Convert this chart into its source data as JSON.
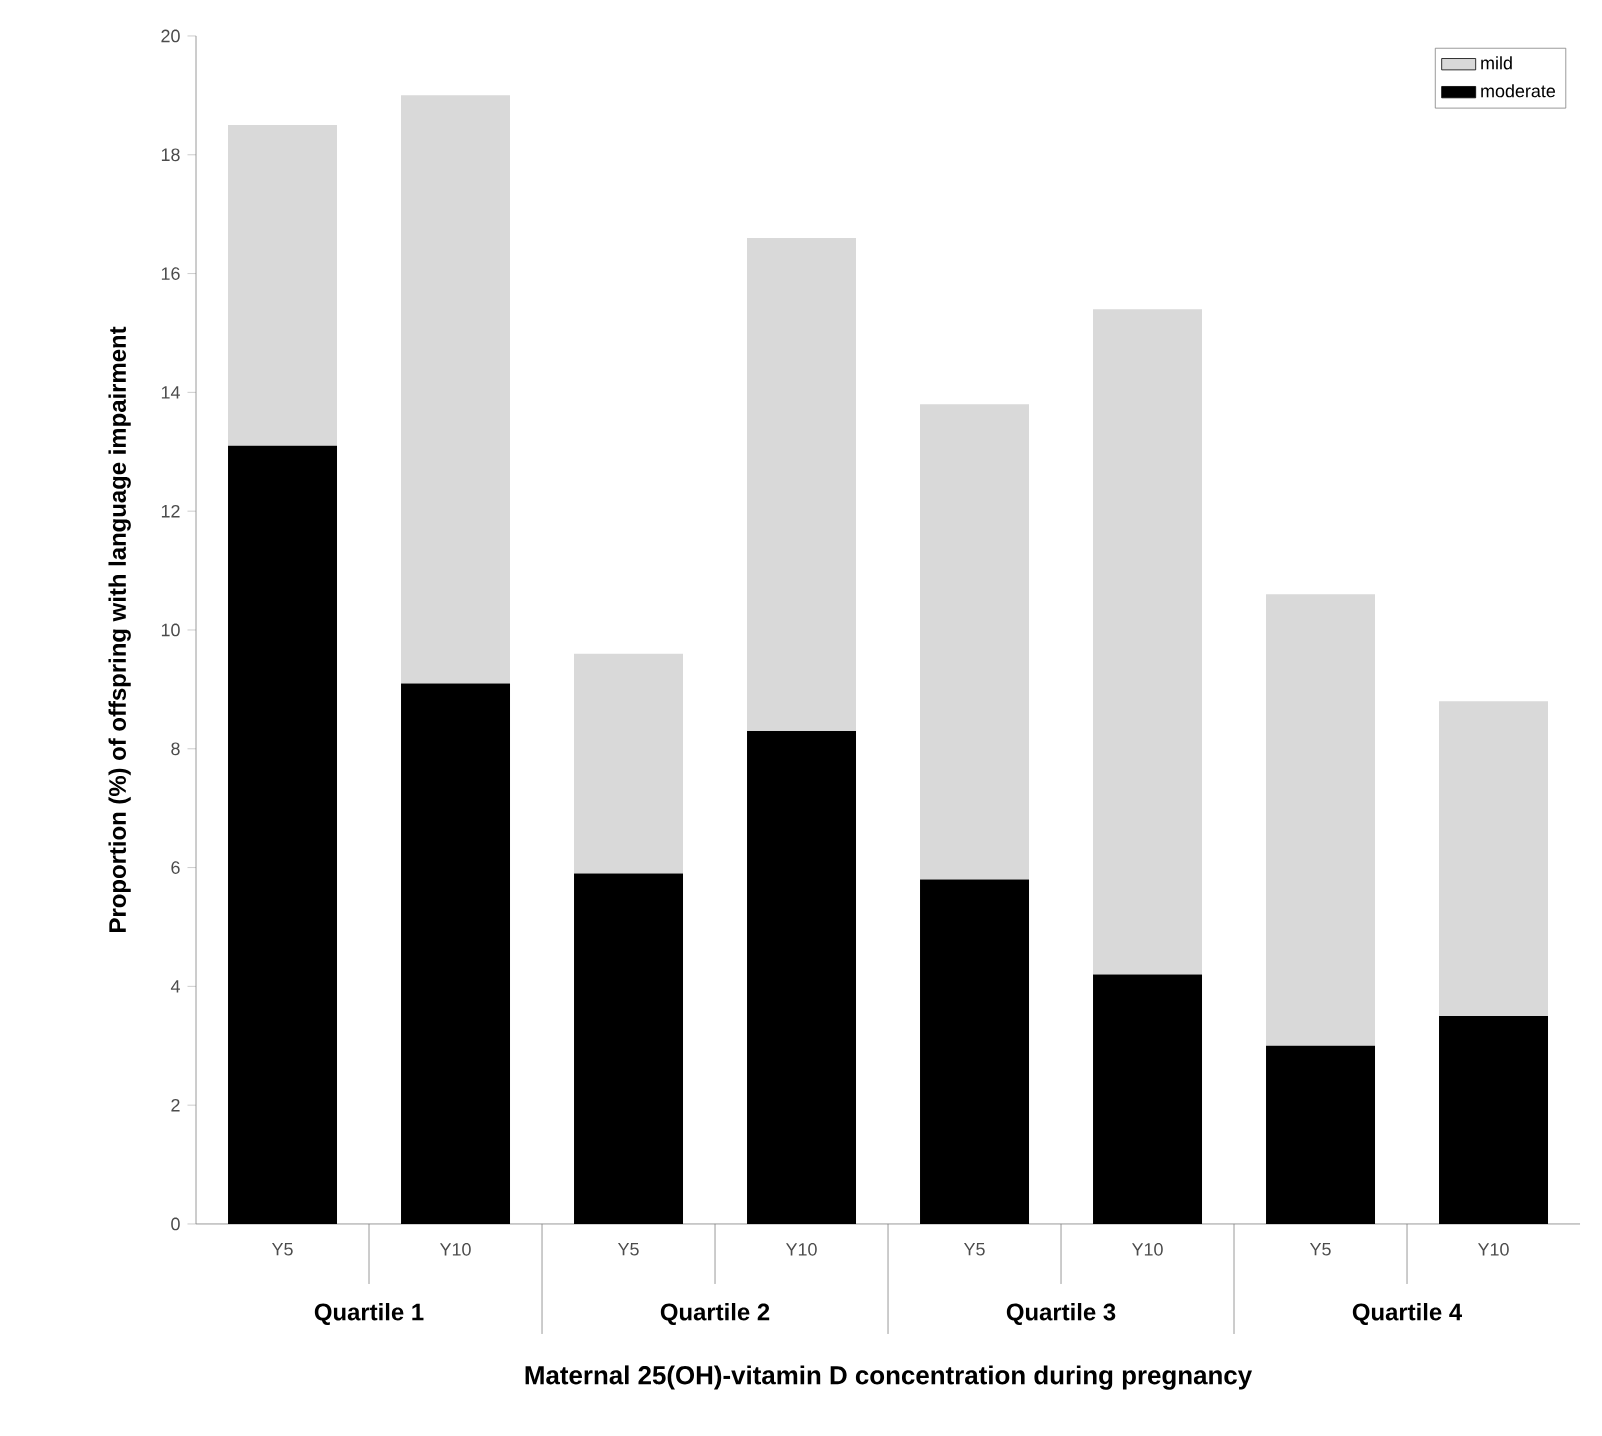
{
  "chart_data": {
    "type": "bar",
    "stacked": true,
    "xlabel": "Maternal 25(OH)-vitamin D concentration during pregnancy",
    "ylabel": "Proportion (%) of offspring with language impairment",
    "categories": [
      "Y5",
      "Y10",
      "Y5",
      "Y10",
      "Y5",
      "Y10",
      "Y5",
      "Y10"
    ],
    "annotations": [
      "Quartile 1",
      "Quartile 2",
      "Quartile 3",
      "Quartile 4"
    ],
    "series": [
      {
        "name": "moderate",
        "color": "#000000",
        "values": [
          13.1,
          9.1,
          5.9,
          8.3,
          5.8,
          4.2,
          3.0,
          3.5
        ]
      },
      {
        "name": "mild",
        "color": "#d9d9d9",
        "values": [
          5.4,
          9.9,
          3.7,
          8.3,
          8.0,
          11.2,
          7.6,
          5.3
        ]
      }
    ],
    "ylim": [
      0,
      20
    ],
    "yticks": [
      0,
      2,
      4,
      6,
      8,
      10,
      12,
      14,
      16,
      18,
      20
    ],
    "legend": "top right"
  }
}
